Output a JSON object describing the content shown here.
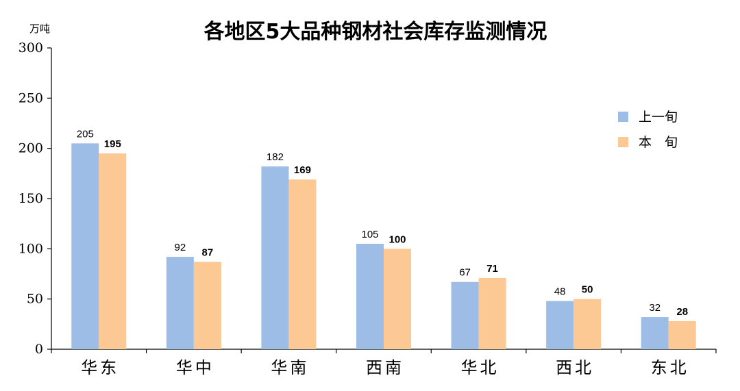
{
  "chart_data": {
    "type": "bar",
    "title": "各地区5大品种钢材社会库存监测情况",
    "unit_label": "万吨",
    "ylim": [
      0,
      300
    ],
    "yticks": [
      "0",
      "50",
      "100",
      "150",
      "200",
      "250",
      "300"
    ],
    "categories": [
      "华东",
      "华中",
      "华南",
      "西南",
      "华北",
      "西北",
      "东北"
    ],
    "series": [
      {
        "name": "上一旬",
        "values": [
          205,
          92,
          182,
          105,
          67,
          48,
          32
        ],
        "color": "#9dbde6"
      },
      {
        "name": "本　旬",
        "values": [
          195,
          87,
          169,
          100,
          71,
          50,
          28
        ],
        "color": "#fcc994"
      }
    ],
    "legend_position": "right",
    "grid": false
  }
}
